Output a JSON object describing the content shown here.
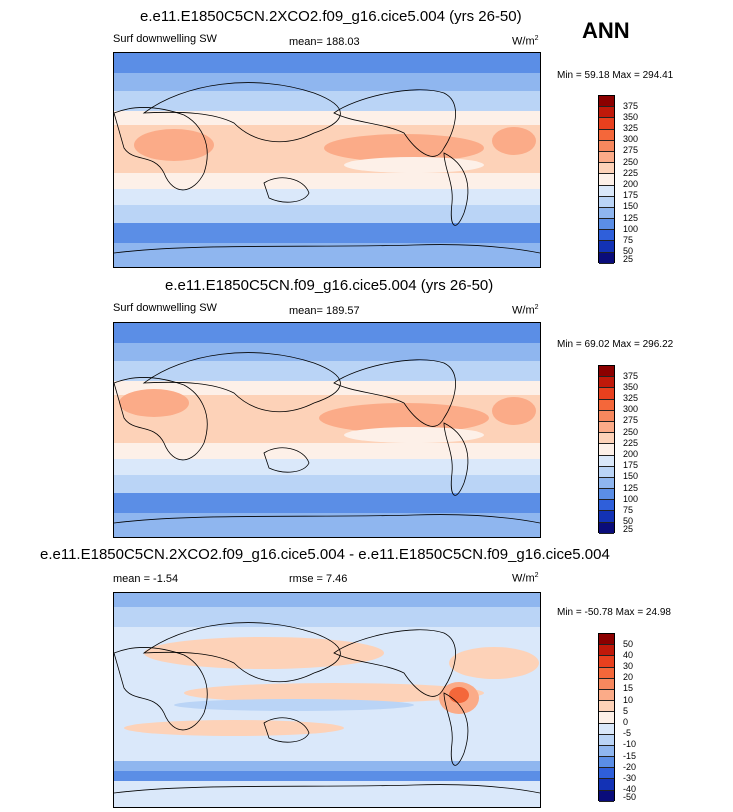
{
  "season": "ANN",
  "panels": [
    {
      "title": "e.e11.E1850C5CN.2XCO2.f09_g16.cice5.004 (yrs 26-50)",
      "variable": "Surf downwelling SW",
      "mean": "mean= 188.03",
      "units": "W/m",
      "units_sup": "2",
      "minmax": "Min =  59.18 Max = 294.41",
      "levels": [
        "375",
        "350",
        "325",
        "300",
        "275",
        "250",
        "225",
        "200",
        "175",
        "150",
        "125",
        "100",
        "75",
        "50",
        "25"
      ],
      "colors": [
        "#8b0000",
        "#c0190a",
        "#e8401e",
        "#f4673a",
        "#f7885e",
        "#fbab88",
        "#fdd2b8",
        "#fdf0e8",
        "#dae8fa",
        "#bad4f6",
        "#8fb6ef",
        "#5b8ee6",
        "#2f5fda",
        "#1332b5",
        "#0a0c7a"
      ]
    },
    {
      "title": "e.e11.E1850C5CN.f09_g16.cice5.004 (yrs 26-50)",
      "variable": "Surf downwelling SW",
      "mean": "mean= 189.57",
      "units": "W/m",
      "units_sup": "2",
      "minmax": "Min =  69.02 Max = 296.22",
      "levels": [
        "375",
        "350",
        "325",
        "300",
        "275",
        "250",
        "225",
        "200",
        "175",
        "150",
        "125",
        "100",
        "75",
        "50",
        "25"
      ],
      "colors": [
        "#8b0000",
        "#c0190a",
        "#e8401e",
        "#f4673a",
        "#f7885e",
        "#fbab88",
        "#fdd2b8",
        "#fdf0e8",
        "#dae8fa",
        "#bad4f6",
        "#8fb6ef",
        "#5b8ee6",
        "#2f5fda",
        "#1332b5",
        "#0a0c7a"
      ]
    },
    {
      "title": "e.e11.E1850C5CN.2XCO2.f09_g16.cice5.004 - e.e11.E1850C5CN.f09_g16.cice5.004",
      "variable": "",
      "mean": "mean =  -1.54",
      "rmse": "rmse =  7.46",
      "units": "W/m",
      "units_sup": "2",
      "minmax": "Min = -50.78 Max =  24.98",
      "levels": [
        "50",
        "40",
        "30",
        "20",
        "15",
        "10",
        "5",
        "0",
        "-5",
        "-10",
        "-15",
        "-20",
        "-30",
        "-40",
        "-50"
      ],
      "colors": [
        "#8b0000",
        "#c0190a",
        "#e8401e",
        "#f4673a",
        "#f7885e",
        "#fbab88",
        "#fdd2b8",
        "#fdf0e8",
        "#dae8fa",
        "#bad4f6",
        "#8fb6ef",
        "#5b8ee6",
        "#2f5fda",
        "#1332b5",
        "#0a0c7a"
      ]
    }
  ]
}
